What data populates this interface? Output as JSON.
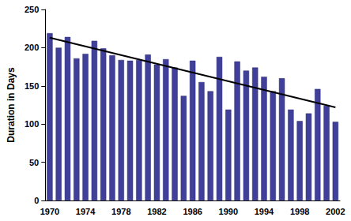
{
  "chart_data": {
    "type": "bar",
    "y_label": "Duration in Days",
    "categories": [
      1970,
      null,
      null,
      null,
      1974,
      null,
      null,
      null,
      1978,
      null,
      null,
      null,
      1982,
      null,
      null,
      null,
      1986,
      null,
      null,
      null,
      1990,
      null,
      null,
      null,
      1994,
      null,
      null,
      null,
      1998,
      null,
      null,
      null,
      2002
    ],
    "series": [
      {
        "type": "bar",
        "color": "#40409a",
        "values": [
          219,
          200,
          214,
          186,
          192,
          209,
          199,
          190,
          184,
          183,
          184,
          191,
          178,
          185,
          174,
          137,
          183,
          155,
          143,
          188,
          119,
          182,
          170,
          174,
          162,
          143,
          160,
          119,
          104,
          114,
          146,
          124,
          103
        ]
      },
      {
        "type": "line",
        "color": "#000000",
        "x": [
          1970,
          2002
        ],
        "values": [
          213,
          122
        ]
      }
    ],
    "ylim": [
      0,
      250
    ],
    "yticks": [
      0,
      50,
      100,
      150,
      200,
      250
    ],
    "grid": false
  }
}
